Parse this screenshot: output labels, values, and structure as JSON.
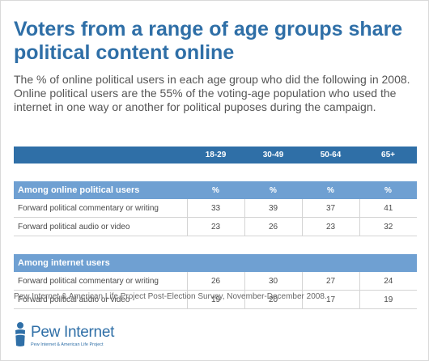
{
  "title": "Voters from a range of age groups share political content online",
  "subtitle": "The % of online political users in each age group who did the following in 2008. Online political users are the 55% of the voting-age population who used the internet in one way or another for political puposes during the campaign.",
  "source": "Pew Internet & American Life Project Post-Election Survey, November-December 2008.",
  "logo": {
    "name": "Pew Internet",
    "tagline": "Pew Internet & American Life Project"
  },
  "colors": {
    "title": "#2f6fa7",
    "header": "#2f6fa7",
    "section": "#6fa0d2"
  },
  "chart_data": {
    "type": "table",
    "columns": [
      "18-29",
      "30-49",
      "50-64",
      "65+"
    ],
    "unit": "%",
    "sections": [
      {
        "label": "Among online political users",
        "rows": [
          {
            "label": "Forward political commentary or writing",
            "values": [
              33,
              39,
              37,
              41
            ]
          },
          {
            "label": "Forward political audio or video",
            "values": [
              23,
              26,
              23,
              32
            ]
          }
        ]
      },
      {
        "label": "Among internet users",
        "rows": [
          {
            "label": "Forward political commentary or writing",
            "values": [
              26,
              30,
              27,
              24
            ]
          },
          {
            "label": "Forward political audio or video",
            "values": [
              19,
              20,
              17,
              19
            ]
          }
        ]
      }
    ]
  }
}
